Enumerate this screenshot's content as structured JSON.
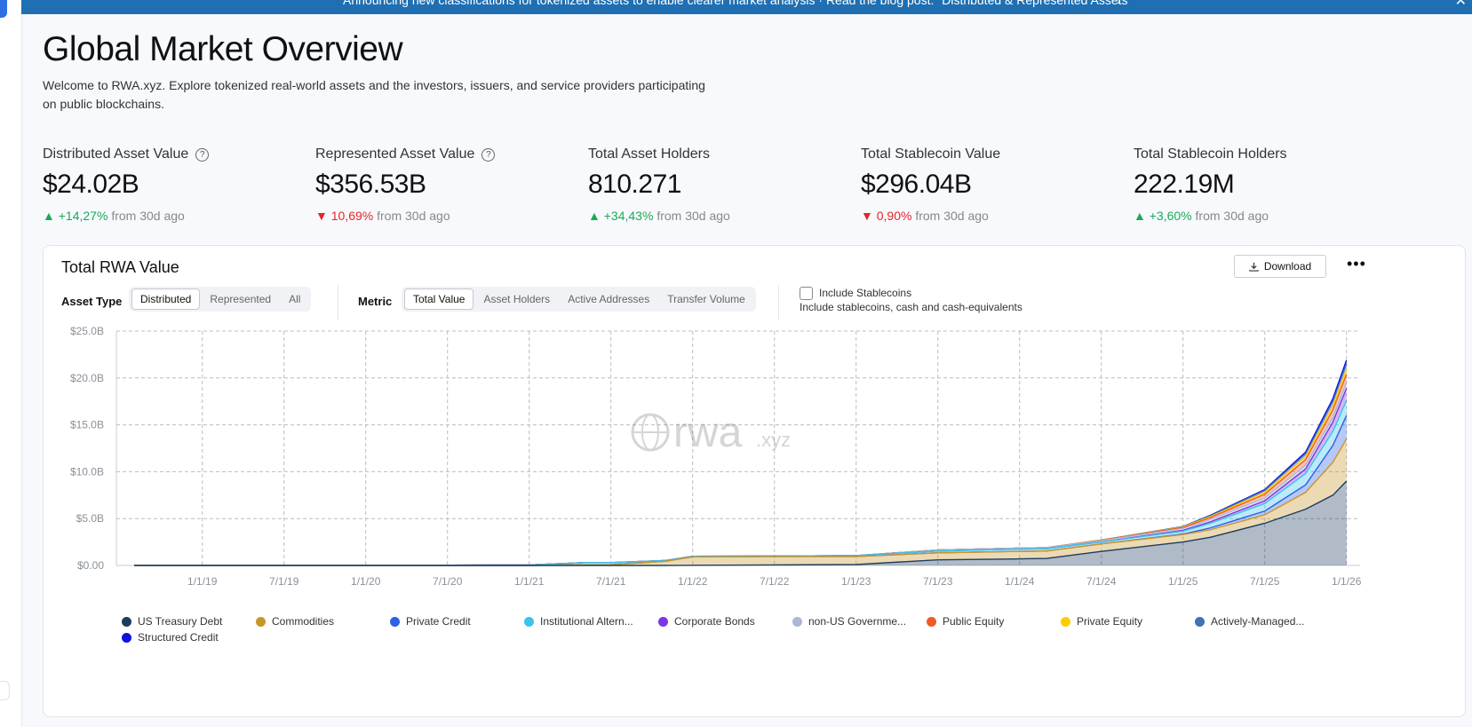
{
  "banner": {
    "text": "Announcing new classifications for tokenized assets to enable clearer market analysis · Read the blog post: \"Distributed & Represented Assets\"",
    "arrow": "›",
    "close": "✕"
  },
  "page": {
    "title": "Global Market Overview",
    "intro": "Welcome to RWA.xyz. Explore tokenized real-world assets and the investors, issuers, and service providers participating on public blockchains."
  },
  "stats": [
    {
      "label": "Distributed Asset Value",
      "value": "$24.02B",
      "arrow": "▲",
      "change": "+14,27%",
      "suffix": "from 30d ago",
      "direction": "up"
    },
    {
      "label": "Represented Asset Value",
      "value": "$356.53B",
      "arrow": "▼",
      "change": "10,69%",
      "suffix": "from 30d ago",
      "direction": "down"
    },
    {
      "label": "Total Asset Holders",
      "value": "810.271",
      "arrow": "▲",
      "change": "+34,43%",
      "suffix": "from 30d ago",
      "direction": "up"
    },
    {
      "label": "Total Stablecoin Value",
      "value": "$296.04B",
      "arrow": "▼",
      "change": "0,90%",
      "suffix": "from 30d ago",
      "direction": "down"
    },
    {
      "label": "Total Stablecoin Holders",
      "value": "222.19M",
      "arrow": "▲",
      "change": "+3,60%",
      "suffix": "from 30d ago",
      "direction": "up"
    }
  ],
  "card": {
    "title": "Total RWA Value",
    "download_label": "Download",
    "more_label": "•••",
    "asset_type_label": "Asset Type",
    "asset_types": [
      "Distributed",
      "Represented",
      "All"
    ],
    "metric_label": "Metric",
    "metrics": [
      "Total Value",
      "Asset Holders",
      "Active Addresses",
      "Transfer Volume"
    ],
    "include_stablecoins_label": "Include Stablecoins",
    "include_stablecoins_sub": "Include stablecoins, cash and cash-equivalents",
    "watermark_main": "rwa",
    "watermark_suffix": ".xyz"
  },
  "chart_data": {
    "type": "area",
    "stacked": true,
    "title": "Total RWA Value",
    "ylabel": "",
    "xlabel": "",
    "ylim": [
      0,
      25
    ],
    "y_unit": "B USD",
    "y_ticks": [
      "$0.00",
      "$5.0B",
      "$10.0B",
      "$15.0B",
      "$20.0B",
      "$25.0B"
    ],
    "x_ticks": [
      "1/1/19",
      "7/1/19",
      "1/1/20",
      "7/1/20",
      "1/1/21",
      "7/1/21",
      "1/1/22",
      "7/1/22",
      "1/1/23",
      "7/1/23",
      "1/1/24",
      "7/1/24",
      "1/1/25",
      "7/1/25",
      "1/1/26"
    ],
    "x": [
      "2018-08",
      "2019-01",
      "2019-07",
      "2020-01",
      "2020-07",
      "2021-01",
      "2021-05",
      "2021-07",
      "2021-11",
      "2022-01",
      "2022-07",
      "2023-01",
      "2023-07",
      "2024-01",
      "2024-03",
      "2024-07",
      "2025-01",
      "2025-03",
      "2025-07",
      "2025-10",
      "2025-12",
      "2026-01"
    ],
    "series": [
      {
        "name": "US Treasury Debt",
        "color": "#1c3d5e",
        "values": [
          0,
          0,
          0,
          0,
          0,
          0,
          0,
          0,
          0,
          0.02,
          0.05,
          0.1,
          0.6,
          0.7,
          0.75,
          1.5,
          2.5,
          3.0,
          4.5,
          6.0,
          7.5,
          9.0
        ]
      },
      {
        "name": "Commodities",
        "color": "#c9962a",
        "values": [
          0,
          0,
          0,
          0,
          0,
          0,
          0.08,
          0.08,
          0.45,
          0.9,
          0.9,
          0.85,
          0.75,
          0.8,
          0.8,
          0.8,
          0.8,
          0.8,
          0.9,
          1.8,
          3.5,
          4.5
        ]
      },
      {
        "name": "Private Credit",
        "color": "#2d62e6",
        "values": [
          0,
          0,
          0,
          0,
          0,
          0,
          0,
          0,
          0,
          0,
          0,
          0,
          0,
          0,
          0,
          0,
          0.05,
          0.2,
          0.4,
          0.8,
          1.8,
          2.5
        ]
      },
      {
        "name": "Institutional Alternative Funds",
        "color": "#3cc3ea",
        "values": [
          0.02,
          0.02,
          0.02,
          0.02,
          0.03,
          0.05,
          0.22,
          0.22,
          0.08,
          0.05,
          0.05,
          0.1,
          0.2,
          0.25,
          0.25,
          0.2,
          0.3,
          0.5,
          0.8,
          1.2,
          1.5,
          1.6
        ]
      },
      {
        "name": "Corporate Bonds",
        "color": "#7e35e6",
        "values": [
          0,
          0,
          0,
          0,
          0,
          0,
          0,
          0,
          0,
          0,
          0,
          0,
          0,
          0,
          0,
          0,
          0.1,
          0.15,
          0.3,
          0.5,
          1.0,
          1.3
        ]
      },
      {
        "name": "non-US Government Debt",
        "color": "#aab8d1",
        "values": [
          0,
          0,
          0,
          0,
          0,
          0,
          0,
          0,
          0,
          0,
          0,
          0,
          0.1,
          0.1,
          0.1,
          0.15,
          0.2,
          0.25,
          0.3,
          0.4,
          0.5,
          0.6
        ]
      },
      {
        "name": "Public Equity",
        "color": "#f05a28",
        "values": [
          0,
          0,
          0,
          0,
          0,
          0,
          0,
          0,
          0,
          0,
          0,
          0,
          0,
          0,
          0,
          0.05,
          0.1,
          0.2,
          0.4,
          0.6,
          0.8,
          0.9
        ]
      },
      {
        "name": "Private Equity",
        "color": "#ffcc00",
        "values": [
          0,
          0,
          0,
          0,
          0,
          0,
          0,
          0,
          0,
          0,
          0,
          0,
          0,
          0,
          0,
          0,
          0.05,
          0.1,
          0.2,
          0.3,
          0.4,
          0.5
        ]
      },
      {
        "name": "Actively-Managed Strategies",
        "color": "#3e73b6",
        "values": [
          0,
          0,
          0,
          0,
          0,
          0,
          0,
          0,
          0,
          0,
          0,
          0,
          0,
          0,
          0,
          0,
          0.05,
          0.1,
          0.2,
          0.3,
          0.5,
          0.6
        ]
      },
      {
        "name": "Structured Credit",
        "color": "#1010e0",
        "values": [
          0,
          0,
          0,
          0,
          0,
          0,
          0,
          0,
          0,
          0,
          0,
          0,
          0,
          0,
          0,
          0,
          0,
          0.05,
          0.1,
          0.2,
          0.3,
          0.4
        ]
      }
    ],
    "legend": [
      {
        "label": "US Treasury Debt",
        "color": "#1c3d5e"
      },
      {
        "label": "Commodities",
        "color": "#c9962a"
      },
      {
        "label": "Private Credit",
        "color": "#2d62e6"
      },
      {
        "label": "Institutional Altern...",
        "color": "#3cc3ea"
      },
      {
        "label": "Corporate Bonds",
        "color": "#7e35e6"
      },
      {
        "label": "non-US Governme...",
        "color": "#aab8d1"
      },
      {
        "label": "Public Equity",
        "color": "#f05a28"
      },
      {
        "label": "Private Equity",
        "color": "#ffcc00"
      },
      {
        "label": "Actively-Managed...",
        "color": "#3e73b6"
      },
      {
        "label": "Structured Credit",
        "color": "#1010e0"
      }
    ],
    "legend_position": "bottom",
    "grid": true
  }
}
